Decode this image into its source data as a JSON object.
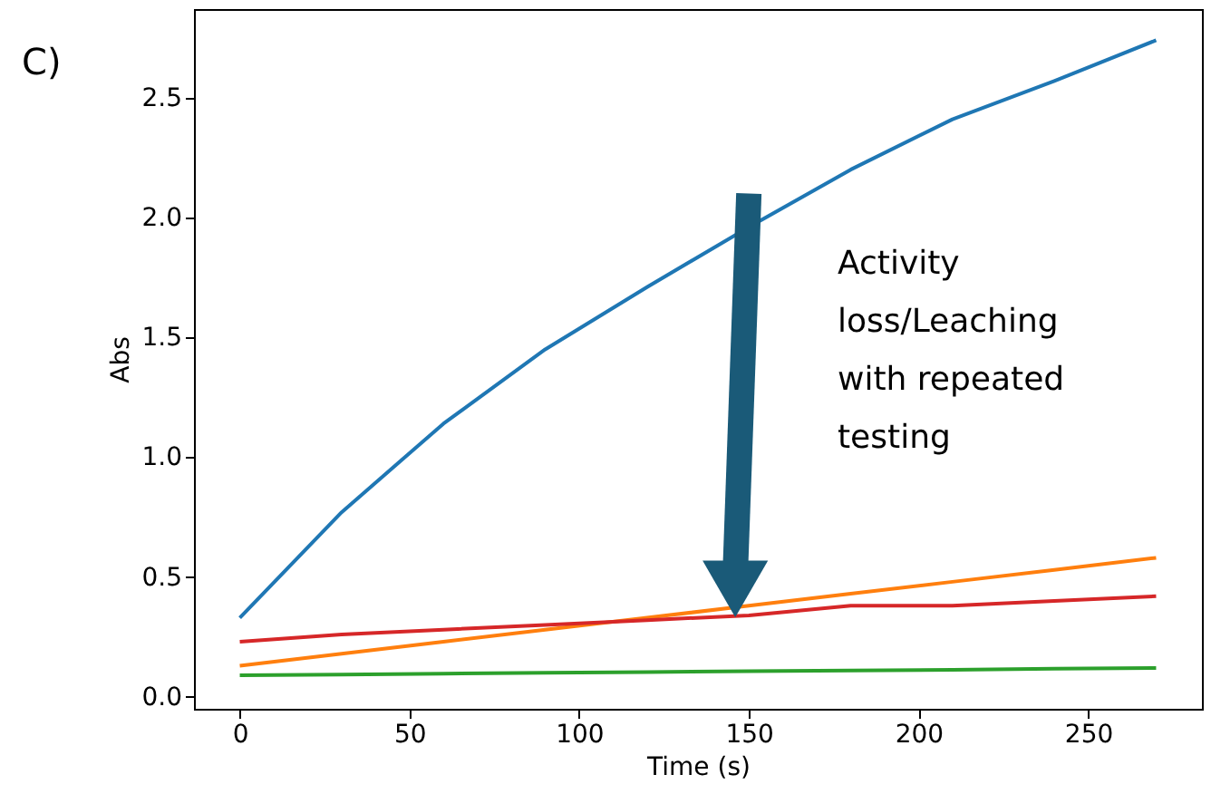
{
  "chart_data": {
    "type": "line",
    "xlabel": "Time (s)",
    "ylabel": "Abs",
    "x": [
      0,
      30,
      60,
      90,
      120,
      150,
      180,
      210,
      240,
      270
    ],
    "series": [
      {
        "color": "#1f77b4",
        "values": [
          0.33,
          0.77,
          1.14,
          1.45,
          1.71,
          1.96,
          2.2,
          2.41,
          2.57,
          2.74
        ]
      },
      {
        "color": "#ff7f0e",
        "values": [
          0.13,
          0.18,
          0.23,
          0.28,
          0.33,
          0.38,
          0.43,
          0.48,
          0.53,
          0.58
        ]
      },
      {
        "color": "#2ca02c",
        "values": [
          0.09,
          0.093,
          0.097,
          0.1,
          0.103,
          0.107,
          0.11,
          0.113,
          0.117,
          0.12
        ]
      },
      {
        "color": "#d62728",
        "values": [
          0.23,
          0.26,
          0.28,
          0.3,
          0.32,
          0.34,
          0.38,
          0.38,
          0.4,
          0.42
        ]
      }
    ],
    "xlim": [
      -13.5,
      283.5
    ],
    "xticks": [
      0,
      50,
      100,
      150,
      200,
      250
    ],
    "ylim": [
      -0.05,
      2.87
    ],
    "yticks": [
      {
        "value": 0,
        "label": "0.0"
      },
      0.5,
      {
        "value": 1,
        "label": "1.0"
      },
      1.5,
      {
        "value": 2,
        "label": "2.0"
      },
      2.5
    ],
    "grid": false,
    "legend": false,
    "line_style": "solid",
    "marker": "none",
    "annotations": [
      "C)",
      "Activity\nloss/Leaching\nwith repeated\ntesting"
    ]
  }
}
